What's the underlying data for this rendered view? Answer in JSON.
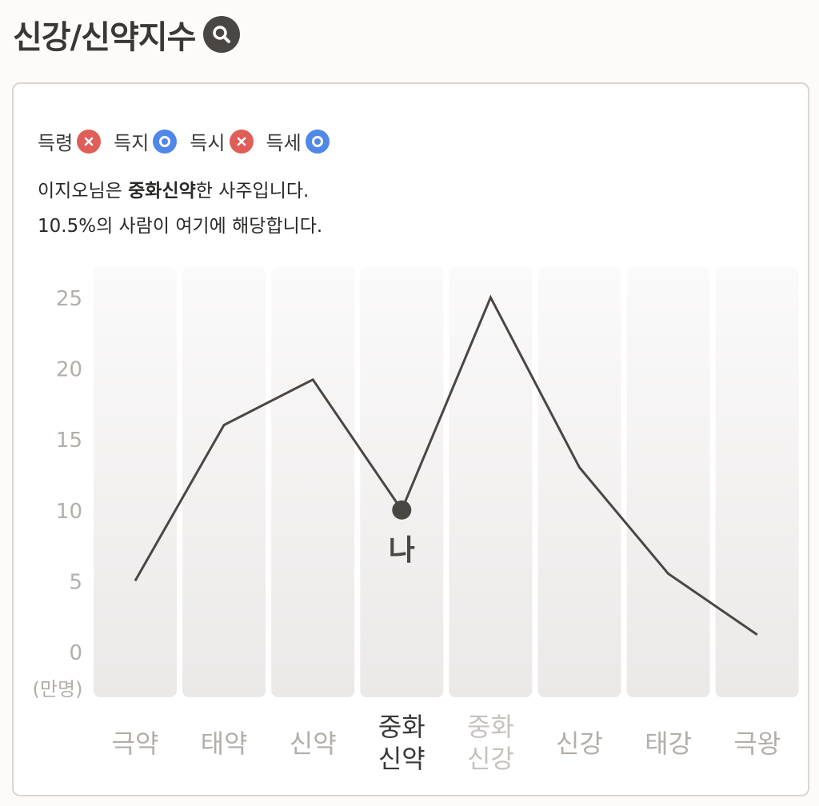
{
  "header": {
    "title": "신강/신약지수",
    "search_icon": "search-icon"
  },
  "badges": [
    {
      "label": "득령",
      "status": "x",
      "color": "#e05e58"
    },
    {
      "label": "득지",
      "status": "o",
      "color": "#4f88e8"
    },
    {
      "label": "득시",
      "status": "x",
      "color": "#e05e58"
    },
    {
      "label": "득세",
      "status": "o",
      "color": "#4f88e8"
    }
  ],
  "summary": {
    "line1_prefix": "이지오님은 ",
    "line1_bold": "중화신약",
    "line1_suffix": "한 사주입니다.",
    "line2": "10.5%의 사람이 여기에 해당합니다."
  },
  "chart_data": {
    "type": "line",
    "categories": [
      "극약",
      "태약",
      "신약",
      "중화\n신약",
      "중화\n신강",
      "신강",
      "태강",
      "극왕"
    ],
    "values": [
      5,
      16,
      19.2,
      10,
      25,
      13,
      5.5,
      1.2
    ],
    "unit_label": "(만명)",
    "yticks": [
      0,
      5,
      10,
      15,
      20,
      25
    ],
    "ylim": [
      0,
      25
    ],
    "marker_index": 3,
    "marker_label": "나",
    "highlight_index": 3,
    "muted_index": 4,
    "colors": {
      "line": "#4a4644",
      "axis_text": "#b3aea9",
      "highlight_text": "#3a3836",
      "muted_text": "#c6c2be"
    }
  }
}
